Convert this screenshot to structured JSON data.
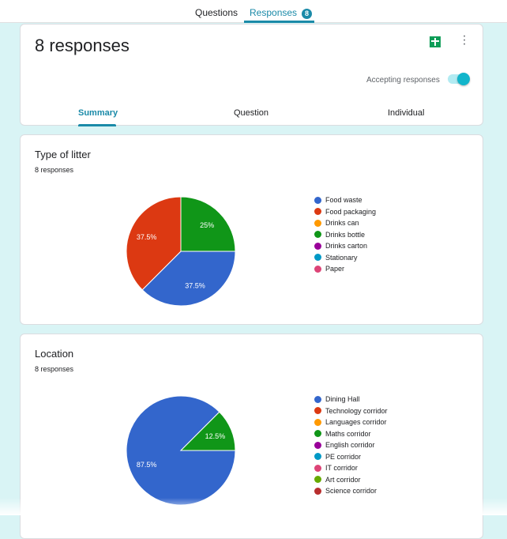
{
  "top_tabs": {
    "questions": "Questions",
    "responses": "Responses",
    "responses_count": "8"
  },
  "header": {
    "title": "8 responses",
    "accepting_label": "Accepting responses",
    "accepting": true,
    "tabs": [
      "Summary",
      "Question",
      "Individual"
    ],
    "accent": "#1a8aa8"
  },
  "questions": [
    {
      "title": "Type of litter",
      "count": "8 responses",
      "chart_data": {
        "type": "pie",
        "categories": [
          "Food waste",
          "Food packaging",
          "Drinks can",
          "Drinks bottle",
          "Drinks carton",
          "Stationary",
          "Paper"
        ],
        "values": [
          37.5,
          37.5,
          0,
          25,
          0,
          0,
          0
        ],
        "colors": [
          "#3366cc",
          "#dc3912",
          "#ff9900",
          "#109618",
          "#990099",
          "#0099c6",
          "#dd4477"
        ],
        "labels": [
          "37.5%",
          "37.5%",
          "",
          "25%",
          "",
          "",
          ""
        ],
        "legend": "right"
      }
    },
    {
      "title": "Location",
      "count": "8 responses",
      "chart_data": {
        "type": "pie",
        "categories": [
          "Dining Hall",
          "Technology corridor",
          "Languages corridor",
          "Maths corridor",
          "English corridor",
          "PE corridor",
          "IT corridor",
          "Art corridor",
          "Science corridor"
        ],
        "values": [
          87.5,
          0,
          0,
          12.5,
          0,
          0,
          0,
          0,
          0
        ],
        "colors": [
          "#3366cc",
          "#dc3912",
          "#ff9900",
          "#109618",
          "#990099",
          "#0099c6",
          "#dd4477",
          "#66aa00",
          "#b82e2e"
        ],
        "labels": [
          "87.5%",
          "",
          "",
          "12.5%",
          "",
          "",
          "",
          "",
          ""
        ],
        "legend": "right"
      }
    }
  ]
}
